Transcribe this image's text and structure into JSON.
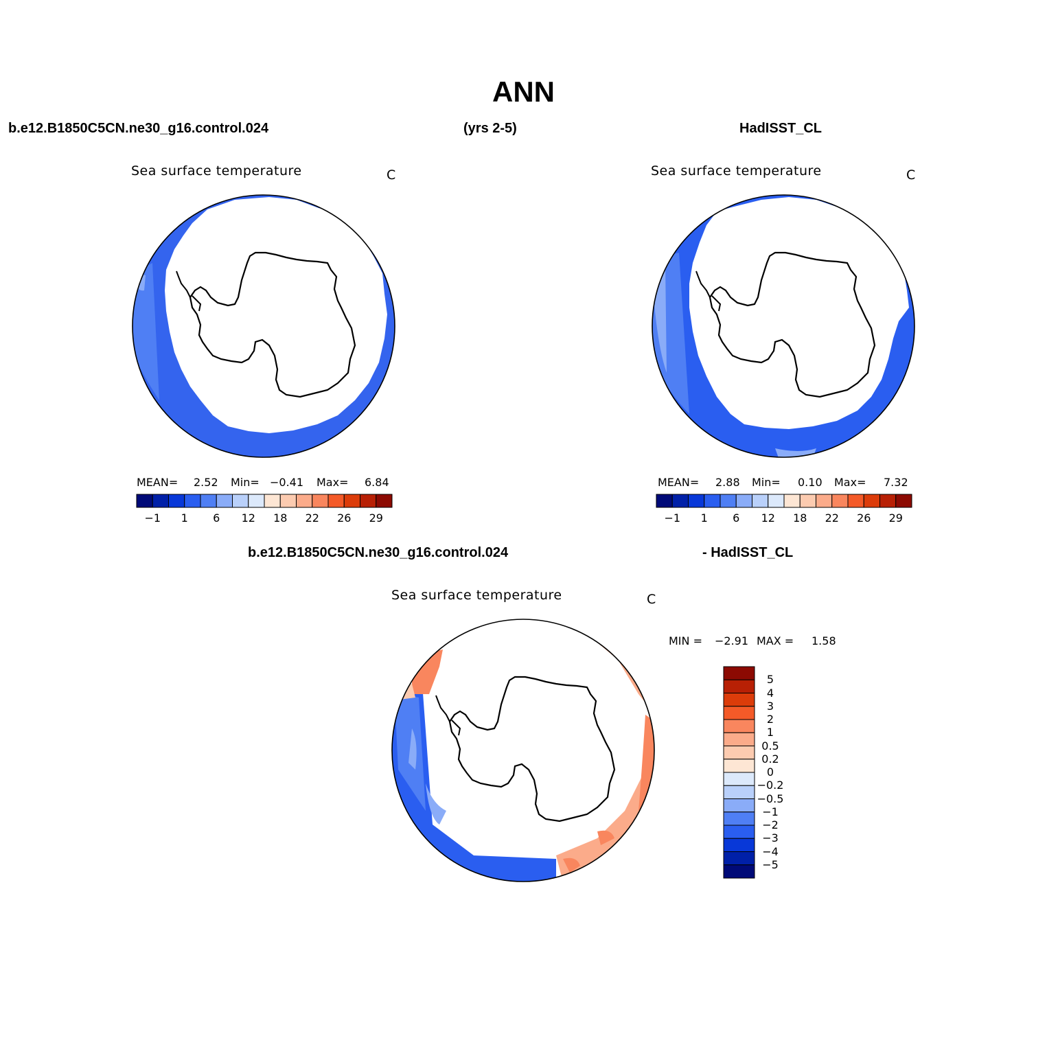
{
  "figure": {
    "title": "ANN",
    "case_name": "b.e12.B1850C5CN.ne30_g16.control.024",
    "years": "(yrs 2-5)",
    "obs_name": "HadISST_CL",
    "diff_case_name": "b.e12.B1850C5CN.ne30_g16.control.024",
    "diff_obs_name": "- HadISST_CL"
  },
  "panels": [
    {
      "id": "model",
      "title": "Sea surface temperature",
      "unit": "C",
      "stats": {
        "mean_label": "MEAN=",
        "mean": "2.52",
        "min_label": "Min=",
        "min": "−0.41",
        "max_label": "Max=",
        "max": "6.84"
      },
      "colorbar_ticks": [
        "−1",
        "1",
        "6",
        "12",
        "18",
        "22",
        "26",
        "29"
      ]
    },
    {
      "id": "obs",
      "title": "Sea surface temperature",
      "unit": "C",
      "stats": {
        "mean_label": "MEAN=",
        "mean": "2.88",
        "min_label": "Min=",
        "min": "0.10",
        "max_label": "Max=",
        "max": "7.32"
      },
      "colorbar_ticks": [
        "−1",
        "1",
        "6",
        "12",
        "18",
        "22",
        "26",
        "29"
      ]
    },
    {
      "id": "diff",
      "title": "Sea surface temperature",
      "unit": "C",
      "stats": {
        "min_label": "MIN =",
        "min": "−2.91",
        "max_label": "MAX =",
        "max": "1.58"
      },
      "colorbar_ticks": [
        "5",
        "4",
        "3",
        "2",
        "1",
        "0.5",
        "0.2",
        "0",
        "−0.2",
        "−0.5",
        "−1",
        "−2",
        "−3",
        "−4",
        "−5"
      ]
    }
  ],
  "colors": {
    "abs_scale": [
      "#000a78",
      "#0020a8",
      "#0838d8",
      "#2a5ef0",
      "#4f7ff4",
      "#8aacf8",
      "#b9d0fa",
      "#dce9fb",
      "#fde6d4",
      "#fccbb0",
      "#fbab8a",
      "#f9865e",
      "#f45a28",
      "#dc3c0a",
      "#b82005",
      "#8c0a02"
    ],
    "diff_scale": [
      "#8c0a02",
      "#b82005",
      "#dc3c0a",
      "#f45a28",
      "#f9865e",
      "#fbab8a",
      "#fccbb0",
      "#fde6d4",
      "#dce9fb",
      "#b9d0fa",
      "#8aacf8",
      "#4f7ff4",
      "#2a5ef0",
      "#0838d8",
      "#0020a8",
      "#000a78"
    ]
  }
}
